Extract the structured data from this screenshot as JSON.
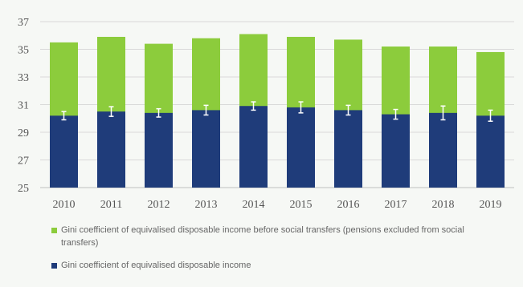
{
  "chart_data": {
    "type": "bar",
    "stacked": false,
    "categories": [
      "2010",
      "2011",
      "2012",
      "2013",
      "2014",
      "2015",
      "2016",
      "2017",
      "2018",
      "2019"
    ],
    "series": [
      {
        "name": "Gini coefficient of equivalised disposable income before social transfers (pensions excluded from social transfers)",
        "color": "#8ccc3c",
        "values": [
          35.5,
          35.9,
          35.4,
          35.8,
          36.1,
          35.9,
          35.7,
          35.2,
          35.2,
          34.8
        ]
      },
      {
        "name": "Gini coefficient of equivalised disposable income",
        "color": "#1f3c7a",
        "values": [
          30.2,
          30.5,
          30.4,
          30.6,
          30.9,
          30.8,
          30.6,
          30.3,
          30.4,
          30.2
        ],
        "error": [
          0.3,
          0.35,
          0.3,
          0.35,
          0.3,
          0.4,
          0.35,
          0.35,
          0.5,
          0.4
        ]
      }
    ],
    "yticks": [
      "25",
      "27",
      "29",
      "31",
      "33",
      "35",
      "37"
    ],
    "ylim": [
      25,
      37
    ],
    "grid": "horizontal",
    "legend_position": "bottom",
    "title": "",
    "xlabel": "",
    "ylabel": ""
  }
}
